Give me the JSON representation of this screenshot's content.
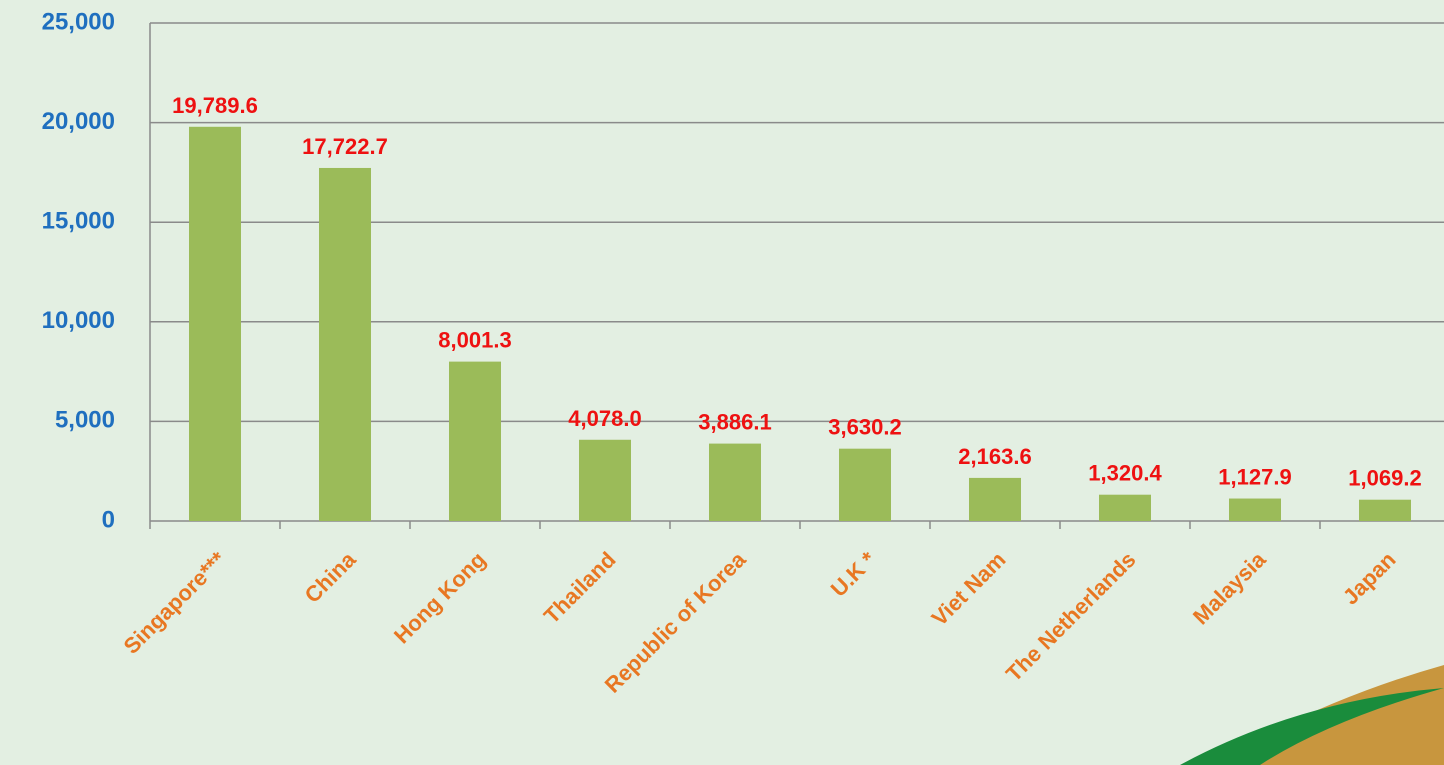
{
  "chart_data": {
    "type": "bar",
    "categories": [
      "Singapore***",
      "China",
      "Hong Kong",
      "Thailand",
      "Republic of Korea",
      "U.K *",
      "Viet Nam",
      "The Netherlands",
      "Malaysia",
      "Japan"
    ],
    "values": [
      19789.6,
      17722.7,
      8001.3,
      4078.0,
      3886.1,
      3630.2,
      2163.6,
      1320.4,
      1127.9,
      1069.2
    ],
    "value_labels": [
      "19,789.6",
      "17,722.7",
      "8,001.3",
      "4,078.0",
      "3,886.1",
      "3,630.2",
      "2,163.6",
      "1,320.4",
      "1,127.9",
      "1,069.2"
    ],
    "color": "#9bbb59",
    "ylim": [
      0,
      25000
    ],
    "yticks": [
      0,
      {
        "value": 5000,
        "label": "5,000"
      },
      {
        "value": 10000,
        "label": "10,000"
      },
      {
        "value": 15000,
        "label": "15,000"
      },
      {
        "value": 20000,
        "label": "20,000"
      },
      {
        "value": 25000,
        "label": "25,000"
      }
    ],
    "grid": true
  }
}
